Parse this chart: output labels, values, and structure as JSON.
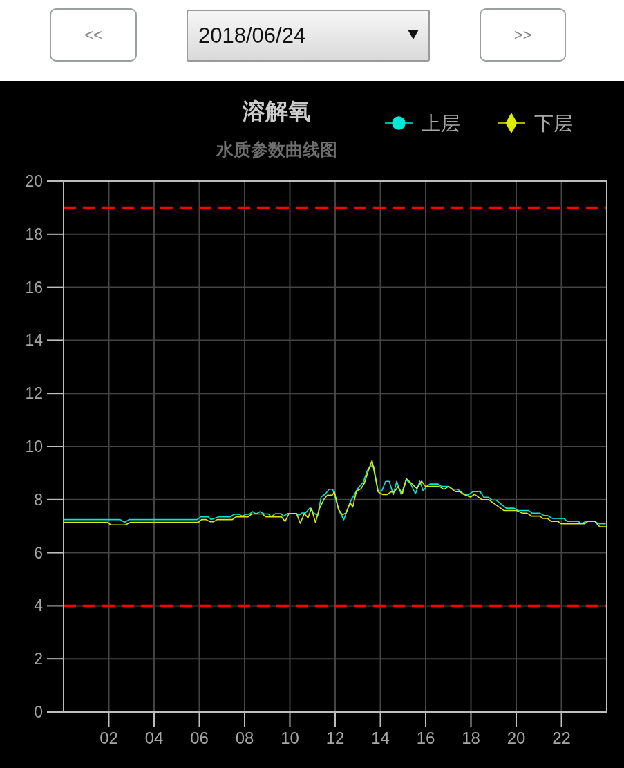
{
  "chart_data": {
    "type": "line",
    "title": "溶解氧",
    "subtitle": "水质参数曲线图",
    "annotations": [
      "<<",
      "2018/06/24",
      ">>"
    ],
    "xlim": [
      0,
      24
    ],
    "xticks": [
      {
        "value": 2,
        "label": "02"
      },
      {
        "value": 4,
        "label": "04"
      },
      {
        "value": 6,
        "label": "06"
      },
      {
        "value": 8,
        "label": "08"
      },
      {
        "value": 10,
        "label": "10"
      },
      {
        "value": 12,
        "label": "12"
      },
      {
        "value": 14,
        "label": "14"
      },
      {
        "value": 16,
        "label": "16"
      },
      {
        "value": 18,
        "label": "18"
      },
      {
        "value": 20,
        "label": "20"
      },
      {
        "value": 22,
        "label": "22"
      }
    ],
    "ylim": [
      0,
      20
    ],
    "yticks": [
      0,
      2,
      4,
      6,
      8,
      10,
      12,
      14,
      16,
      18,
      20
    ],
    "grid": true,
    "legend": "top right",
    "ref_lines": [
      {
        "axis": "y",
        "value": 19,
        "color": "#ff0000",
        "line_style": "dashed"
      },
      {
        "axis": "y",
        "value": 4,
        "color": "#ff0000",
        "line_style": "dashed"
      }
    ],
    "series": [
      {
        "name": "上层",
        "color": "#00e8d8",
        "x": [
          0,
          2.5,
          2.7,
          2.9,
          5.9,
          6.05,
          6.4,
          6.52,
          6.85,
          7.36,
          7.54,
          7.75,
          7.9,
          8.05,
          8.2,
          8.36,
          8.51,
          8.68,
          8.87,
          9.05,
          9.17,
          9.36,
          9.6,
          9.72,
          9.9,
          10.29,
          10.39,
          10.54,
          10.69,
          10.9,
          11.05,
          11.23,
          11.38,
          11.56,
          11.74,
          11.89,
          12.17,
          12.38,
          12.68,
          12.99,
          13.24,
          13.41,
          13.55,
          13.7,
          13.9,
          14.06,
          14.23,
          14.39,
          14.57,
          14.72,
          14.92,
          15.13,
          15.33,
          15.55,
          15.74,
          15.89,
          16.04,
          16.19,
          16.55,
          16.7,
          17.01,
          17.21,
          17.42,
          17.67,
          17.88,
          18.08,
          18.41,
          18.57,
          18.77,
          18.95,
          19.12,
          19.56,
          19.91,
          20.07,
          20.55,
          20.71,
          21.04,
          21.24,
          21.39,
          21.6,
          22.11,
          22.26,
          22.75,
          22.87,
          23.08,
          23.48,
          23.64,
          23.94
        ],
        "values": [
          7.25,
          7.25,
          7.15,
          7.25,
          7.25,
          7.35,
          7.35,
          7.25,
          7.35,
          7.35,
          7.45,
          7.45,
          7.38,
          7.45,
          7.45,
          7.55,
          7.46,
          7.55,
          7.46,
          7.46,
          7.36,
          7.47,
          7.47,
          7.38,
          7.48,
          7.48,
          7.41,
          7.5,
          7.5,
          7.7,
          7.5,
          7.41,
          8.1,
          8.21,
          8.39,
          8.39,
          7.59,
          7.24,
          7.93,
          8.41,
          8.66,
          9.07,
          9.27,
          9.27,
          8.32,
          8.32,
          8.69,
          8.69,
          8.19,
          8.69,
          8.19,
          8.75,
          8.6,
          8.22,
          8.7,
          8.33,
          8.5,
          8.59,
          8.59,
          8.5,
          8.5,
          8.39,
          8.39,
          8.22,
          8.18,
          8.3,
          8.3,
          8.09,
          8.09,
          7.98,
          7.98,
          7.68,
          7.68,
          7.59,
          7.59,
          7.49,
          7.49,
          7.4,
          7.4,
          7.29,
          7.29,
          7.18,
          7.18,
          7.1,
          7.18,
          7.18,
          7.09,
          7.09
        ]
      },
      {
        "name": "下层",
        "color": "#dcec00",
        "x": [
          0,
          1.94,
          2.09,
          2.73,
          2.96,
          5.96,
          6.1,
          6.3,
          6.47,
          6.63,
          6.78,
          7.46,
          7.62,
          8.15,
          8.31,
          8.79,
          8.95,
          9.63,
          9.79,
          9.96,
          10.29,
          10.46,
          10.64,
          10.8,
          10.95,
          11.13,
          11.31,
          11.51,
          11.66,
          11.87,
          11.97,
          12.15,
          12.32,
          12.48,
          12.66,
          12.78,
          12.94,
          13.14,
          13.29,
          13.45,
          13.63,
          13.9,
          14.11,
          14.29,
          14.46,
          14.62,
          14.77,
          14.97,
          15.15,
          15.35,
          15.61,
          15.82,
          15.99,
          16.6,
          16.81,
          17.01,
          17.32,
          17.52,
          17.67,
          17.98,
          18.16,
          18.49,
          18.79,
          19.46,
          20.02,
          20.27,
          20.48,
          20.68,
          21.04,
          21.19,
          21.39,
          21.55,
          21.85,
          22.0,
          23.02,
          23.16,
          23.48,
          23.69,
          23.99
        ],
        "values": [
          7.15,
          7.15,
          7.05,
          7.05,
          7.15,
          7.15,
          7.25,
          7.25,
          7.17,
          7.17,
          7.25,
          7.25,
          7.35,
          7.35,
          7.46,
          7.46,
          7.35,
          7.35,
          7.18,
          7.48,
          7.48,
          7.11,
          7.48,
          7.31,
          7.67,
          7.14,
          7.67,
          8.02,
          8.17,
          8.17,
          8.29,
          7.63,
          7.43,
          7.5,
          7.89,
          7.72,
          8.32,
          8.41,
          8.62,
          9.05,
          9.47,
          8.29,
          8.19,
          8.19,
          8.29,
          8.29,
          8.49,
          8.23,
          8.79,
          8.63,
          8.42,
          8.7,
          8.5,
          8.5,
          8.39,
          8.5,
          8.3,
          8.3,
          8.2,
          8.1,
          8.2,
          8.0,
          8.0,
          7.59,
          7.59,
          7.49,
          7.49,
          7.38,
          7.38,
          7.29,
          7.29,
          7.18,
          7.18,
          7.09,
          7.09,
          7.18,
          7.18,
          6.98,
          6.98
        ]
      }
    ]
  }
}
